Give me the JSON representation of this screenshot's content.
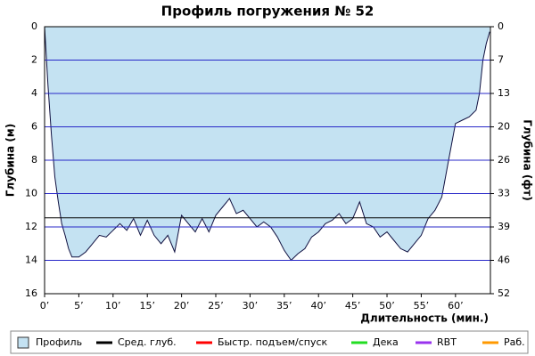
{
  "chart_data": {
    "type": "area",
    "title": "Профиль погружения № 52",
    "x_label": "Длительность (мин.)",
    "y_label": "Глубина (м)",
    "y2_label": "Глубина (фт)",
    "xlim": [
      0,
      65.1
    ],
    "ylim": [
      16,
      0
    ],
    "y2lim": [
      52.49,
      0
    ],
    "xticks": [
      {
        "value": 0,
        "label": "0’"
      },
      {
        "value": 5,
        "label": "5’"
      },
      {
        "value": 10,
        "label": "10’"
      },
      {
        "value": 15,
        "label": "15’"
      },
      {
        "value": 20,
        "label": "20’"
      },
      {
        "value": 25,
        "label": "25’"
      },
      {
        "value": 30,
        "label": "30’"
      },
      {
        "value": 35,
        "label": "35’"
      },
      {
        "value": 40,
        "label": "40’"
      },
      {
        "value": 45,
        "label": "45’"
      },
      {
        "value": 50,
        "label": "50’"
      },
      {
        "value": 55,
        "label": "55’"
      },
      {
        "value": 60,
        "label": "60’"
      }
    ],
    "yticks": [
      0,
      2,
      4,
      6,
      8,
      10,
      12,
      14,
      16
    ],
    "y2ticks": [
      0,
      {
        "value": 6.56,
        "label": "7"
      },
      {
        "value": 13.12,
        "label": "13"
      },
      {
        "value": 19.69,
        "label": "20"
      },
      {
        "value": 26.25,
        "label": "26"
      },
      {
        "value": 32.81,
        "label": "33"
      },
      {
        "value": 39.37,
        "label": "39"
      },
      {
        "value": 45.93,
        "label": "46"
      },
      {
        "value": 52.49,
        "label": "52"
      }
    ],
    "grid": true,
    "grid_color": "#2828c8",
    "average_depth": 11.45,
    "average_color": "#000000",
    "series": [
      {
        "name": "Профиль",
        "color": "#c4e2f2",
        "line_color": "#101040",
        "x": [
          0,
          0.5,
          1,
          1.5,
          2,
          2.5,
          3,
          3.5,
          4,
          5,
          6,
          7,
          8,
          9,
          10,
          11,
          12,
          13,
          14,
          15,
          16,
          17,
          18,
          19,
          20,
          21,
          22,
          23,
          24,
          25,
          26,
          27,
          28,
          29,
          30,
          31,
          32,
          33,
          34,
          35,
          36,
          37,
          38,
          39,
          40,
          41,
          42,
          43,
          44,
          45,
          46,
          47,
          48,
          49,
          50,
          51,
          52,
          53,
          54,
          55,
          56,
          57,
          58,
          59,
          60,
          61,
          62,
          63,
          63.5,
          64,
          64.5,
          65
        ],
        "values": [
          0,
          3.5,
          6.5,
          9,
          10.5,
          11.8,
          12.5,
          13.3,
          13.8,
          13.8,
          13.5,
          13,
          12.5,
          12.6,
          12.2,
          11.8,
          12.2,
          11.5,
          12.5,
          11.6,
          12.5,
          13,
          12.5,
          13.5,
          11.3,
          11.8,
          12.3,
          11.5,
          12.3,
          11.3,
          10.8,
          10.3,
          11.2,
          11,
          11.5,
          12,
          11.7,
          12,
          12.6,
          13.4,
          14,
          13.6,
          13.3,
          12.6,
          12.3,
          11.8,
          11.6,
          11.2,
          11.8,
          11.5,
          10.5,
          11.8,
          12,
          12.6,
          12.3,
          12.8,
          13.3,
          13.5,
          13,
          12.5,
          11.5,
          11,
          10.2,
          8,
          5.8,
          5.6,
          5.4,
          5,
          4,
          2,
          1,
          0.3
        ]
      }
    ],
    "legend": [
      {
        "name": "Профиль",
        "color": "#c4e2f2",
        "shape": "square"
      },
      {
        "name": "Сред. глуб.",
        "color": "#000000",
        "shape": "line"
      },
      {
        "name": "Быстр. подъем/спуск",
        "color": "#ff0000",
        "shape": "line"
      },
      {
        "name": "Дека",
        "color": "#22dd22",
        "shape": "line"
      },
      {
        "name": "RBT",
        "color": "#9933ee",
        "shape": "line"
      },
      {
        "name": "Раб.",
        "color": "#ff9900",
        "shape": "line"
      }
    ]
  }
}
